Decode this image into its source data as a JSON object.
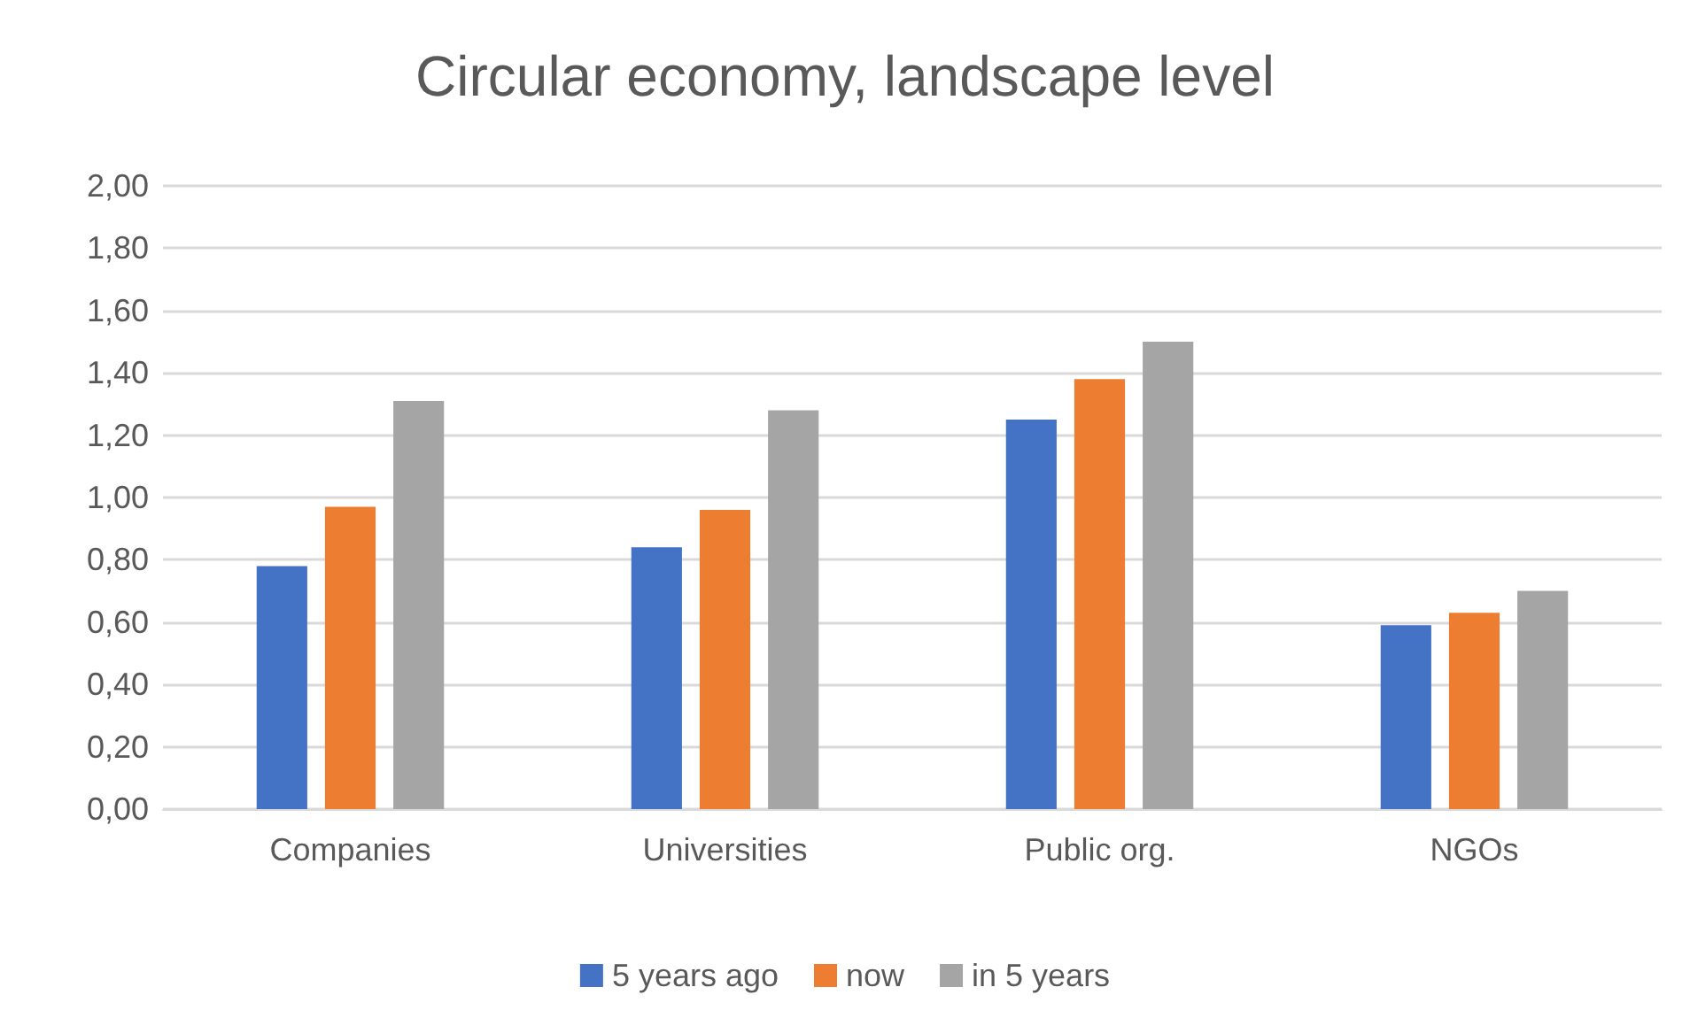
{
  "chart_data": {
    "type": "bar",
    "title": "Circular economy, landscape level",
    "categories": [
      "Companies",
      "Universities",
      "Public org.",
      "NGOs"
    ],
    "series": [
      {
        "name": "5 years ago",
        "color": "#4472c4",
        "values": [
          0.78,
          0.84,
          1.25,
          0.59
        ]
      },
      {
        "name": "now",
        "color": "#ed7d31",
        "values": [
          0.97,
          0.96,
          1.38,
          0.63
        ]
      },
      {
        "name": "in 5 years",
        "color": "#a5a5a5",
        "values": [
          1.31,
          1.28,
          1.5,
          0.7
        ]
      }
    ],
    "ylim": [
      0,
      2
    ],
    "yticks": [
      {
        "value": 0,
        "label": "0,00"
      },
      {
        "value": 0.2,
        "label": "0,20"
      },
      {
        "value": 0.4,
        "label": "0,40"
      },
      {
        "value": 0.6,
        "label": "0,60"
      },
      {
        "value": 0.8,
        "label": "0,80"
      },
      {
        "value": 1,
        "label": "1,00"
      },
      {
        "value": 1.2,
        "label": "1,20"
      },
      {
        "value": 1.4,
        "label": "1,40"
      },
      {
        "value": 1.6,
        "label": "1,60"
      },
      {
        "value": 1.8,
        "label": "1,80"
      },
      {
        "value": 2,
        "label": "2,00"
      }
    ],
    "grid": "y",
    "legend": "bottom"
  }
}
